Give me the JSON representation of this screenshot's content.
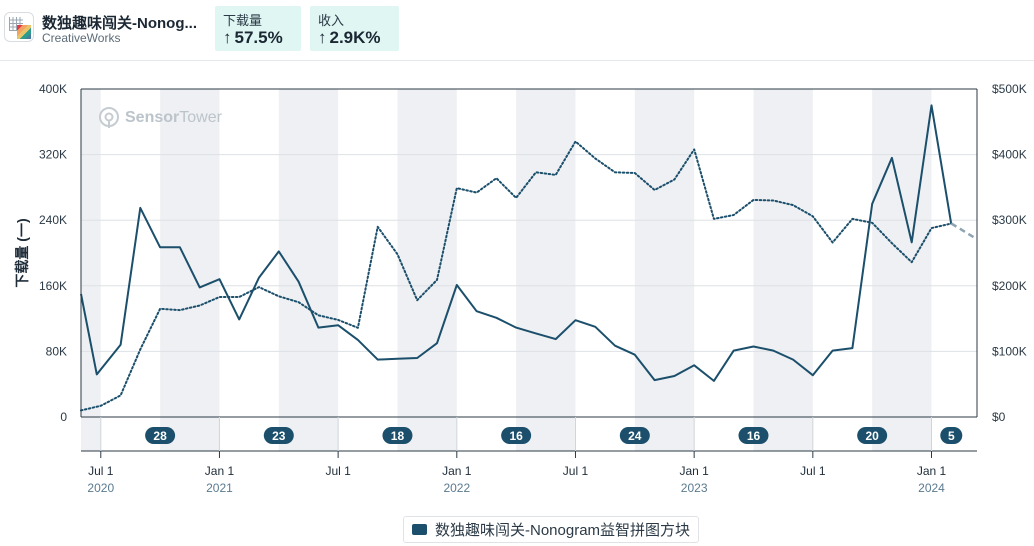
{
  "header": {
    "app_title": "数独趣味闯关-Nonog...",
    "developer": "CreativeWorks",
    "downloads_label": "下载量",
    "downloads_change": "57.5%",
    "revenue_label": "收入",
    "revenue_change": "2.9K%",
    "arrow": "↑"
  },
  "watermark": {
    "text_bold": "Sensor",
    "text_light": "Tower"
  },
  "legend": {
    "label": "数独趣味闯关-Nonogram益智拼图方块"
  },
  "colors": {
    "downloads": "#1b4f6b",
    "revenue": "#1b4f6b",
    "band": "#eef0f3",
    "badge": "#1b4f6b",
    "header_card": "#dff6f3"
  },
  "chart_data": {
    "type": "line",
    "ylabel": "下载量 (一)",
    "ylim": [
      0,
      400000
    ],
    "y2lim": [
      0,
      500
    ],
    "y_ticks": [
      "0",
      "80K",
      "160K",
      "240K",
      "320K",
      "400K"
    ],
    "y2_ticks": [
      "$0",
      "$100K",
      "$200K",
      "$300K",
      "$400K",
      "$500K"
    ],
    "x_ticks": [
      {
        "label": "Jul 1",
        "year": "2020",
        "month": 6
      },
      {
        "label": "Jan 1",
        "year": "2021",
        "month": 12
      },
      {
        "label": "Jul 1",
        "year": "",
        "month": 18
      },
      {
        "label": "Jan 1",
        "year": "2022",
        "month": 24
      },
      {
        "label": "Jul 1",
        "year": "",
        "month": 30
      },
      {
        "label": "Jan 1",
        "year": "2023",
        "month": 36
      },
      {
        "label": "Jul 1",
        "year": "",
        "month": 42
      },
      {
        "label": "Jan 1",
        "year": "2024",
        "month": 48
      }
    ],
    "x_range_months": [
      5,
      50.3
    ],
    "shaded_periods": [
      [
        5,
        6
      ],
      [
        9,
        12
      ],
      [
        15,
        18
      ],
      [
        21,
        24
      ],
      [
        27,
        30
      ],
      [
        33,
        36
      ],
      [
        39,
        42
      ],
      [
        45,
        48
      ]
    ],
    "badges": [
      {
        "value": "28",
        "month": 9
      },
      {
        "value": "23",
        "month": 15
      },
      {
        "value": "18",
        "month": 21
      },
      {
        "value": "16",
        "month": 27
      },
      {
        "value": "24",
        "month": 33
      },
      {
        "value": "16",
        "month": 39
      },
      {
        "value": "20",
        "month": 45
      },
      {
        "value": "5",
        "month": 49
      }
    ],
    "series": [
      {
        "name": "下载量",
        "style": "solid",
        "x": [
          5,
          5.8,
          7,
          8,
          9,
          10,
          11,
          12,
          13,
          14,
          15,
          16,
          17,
          18,
          19,
          20,
          21,
          22,
          23,
          24,
          25,
          26,
          27,
          28,
          29,
          30,
          31,
          32,
          33,
          34,
          35,
          36,
          37,
          38,
          39,
          40,
          41,
          42,
          43,
          44,
          45,
          46,
          47,
          48,
          49
        ],
        "values": [
          150000,
          52000,
          88000,
          255000,
          207000,
          207000,
          158000,
          168000,
          119000,
          170000,
          202000,
          165000,
          109000,
          112000,
          94000,
          70000,
          71000,
          72000,
          90000,
          161000,
          129000,
          121000,
          109000,
          102000,
          95000,
          118000,
          110000,
          87000,
          76000,
          45000,
          50000,
          63000,
          44000,
          81000,
          86000,
          81000,
          70000,
          51000,
          81000,
          84000,
          260000,
          316000,
          213000,
          380000,
          235000
        ]
      },
      {
        "name": "收入",
        "style": "dotted",
        "axis": "right",
        "x": [
          5,
          6,
          7,
          8,
          9,
          10,
          11,
          12,
          13,
          14,
          15,
          16,
          17,
          18,
          19,
          20,
          21,
          22,
          23,
          24,
          25,
          26,
          27,
          28,
          29,
          30,
          31,
          32,
          33,
          34,
          35,
          36,
          37,
          38,
          39,
          40,
          41,
          42,
          43,
          44,
          45,
          46,
          47,
          48,
          49
        ],
        "values": [
          10,
          17,
          33,
          103,
          165,
          163,
          170,
          183,
          183,
          198,
          184,
          175,
          155,
          148,
          136,
          290,
          248,
          178,
          209,
          349,
          342,
          364,
          334,
          373,
          369,
          420,
          394,
          373,
          372,
          346,
          362,
          408,
          302,
          308,
          331,
          330,
          323,
          306,
          266,
          302,
          296,
          265,
          236,
          288,
          295
        ]
      },
      {
        "name": "收入 (预估)",
        "style": "dashed",
        "axis": "right",
        "x": [
          49,
          50.3
        ],
        "values": [
          295,
          271
        ]
      }
    ]
  }
}
